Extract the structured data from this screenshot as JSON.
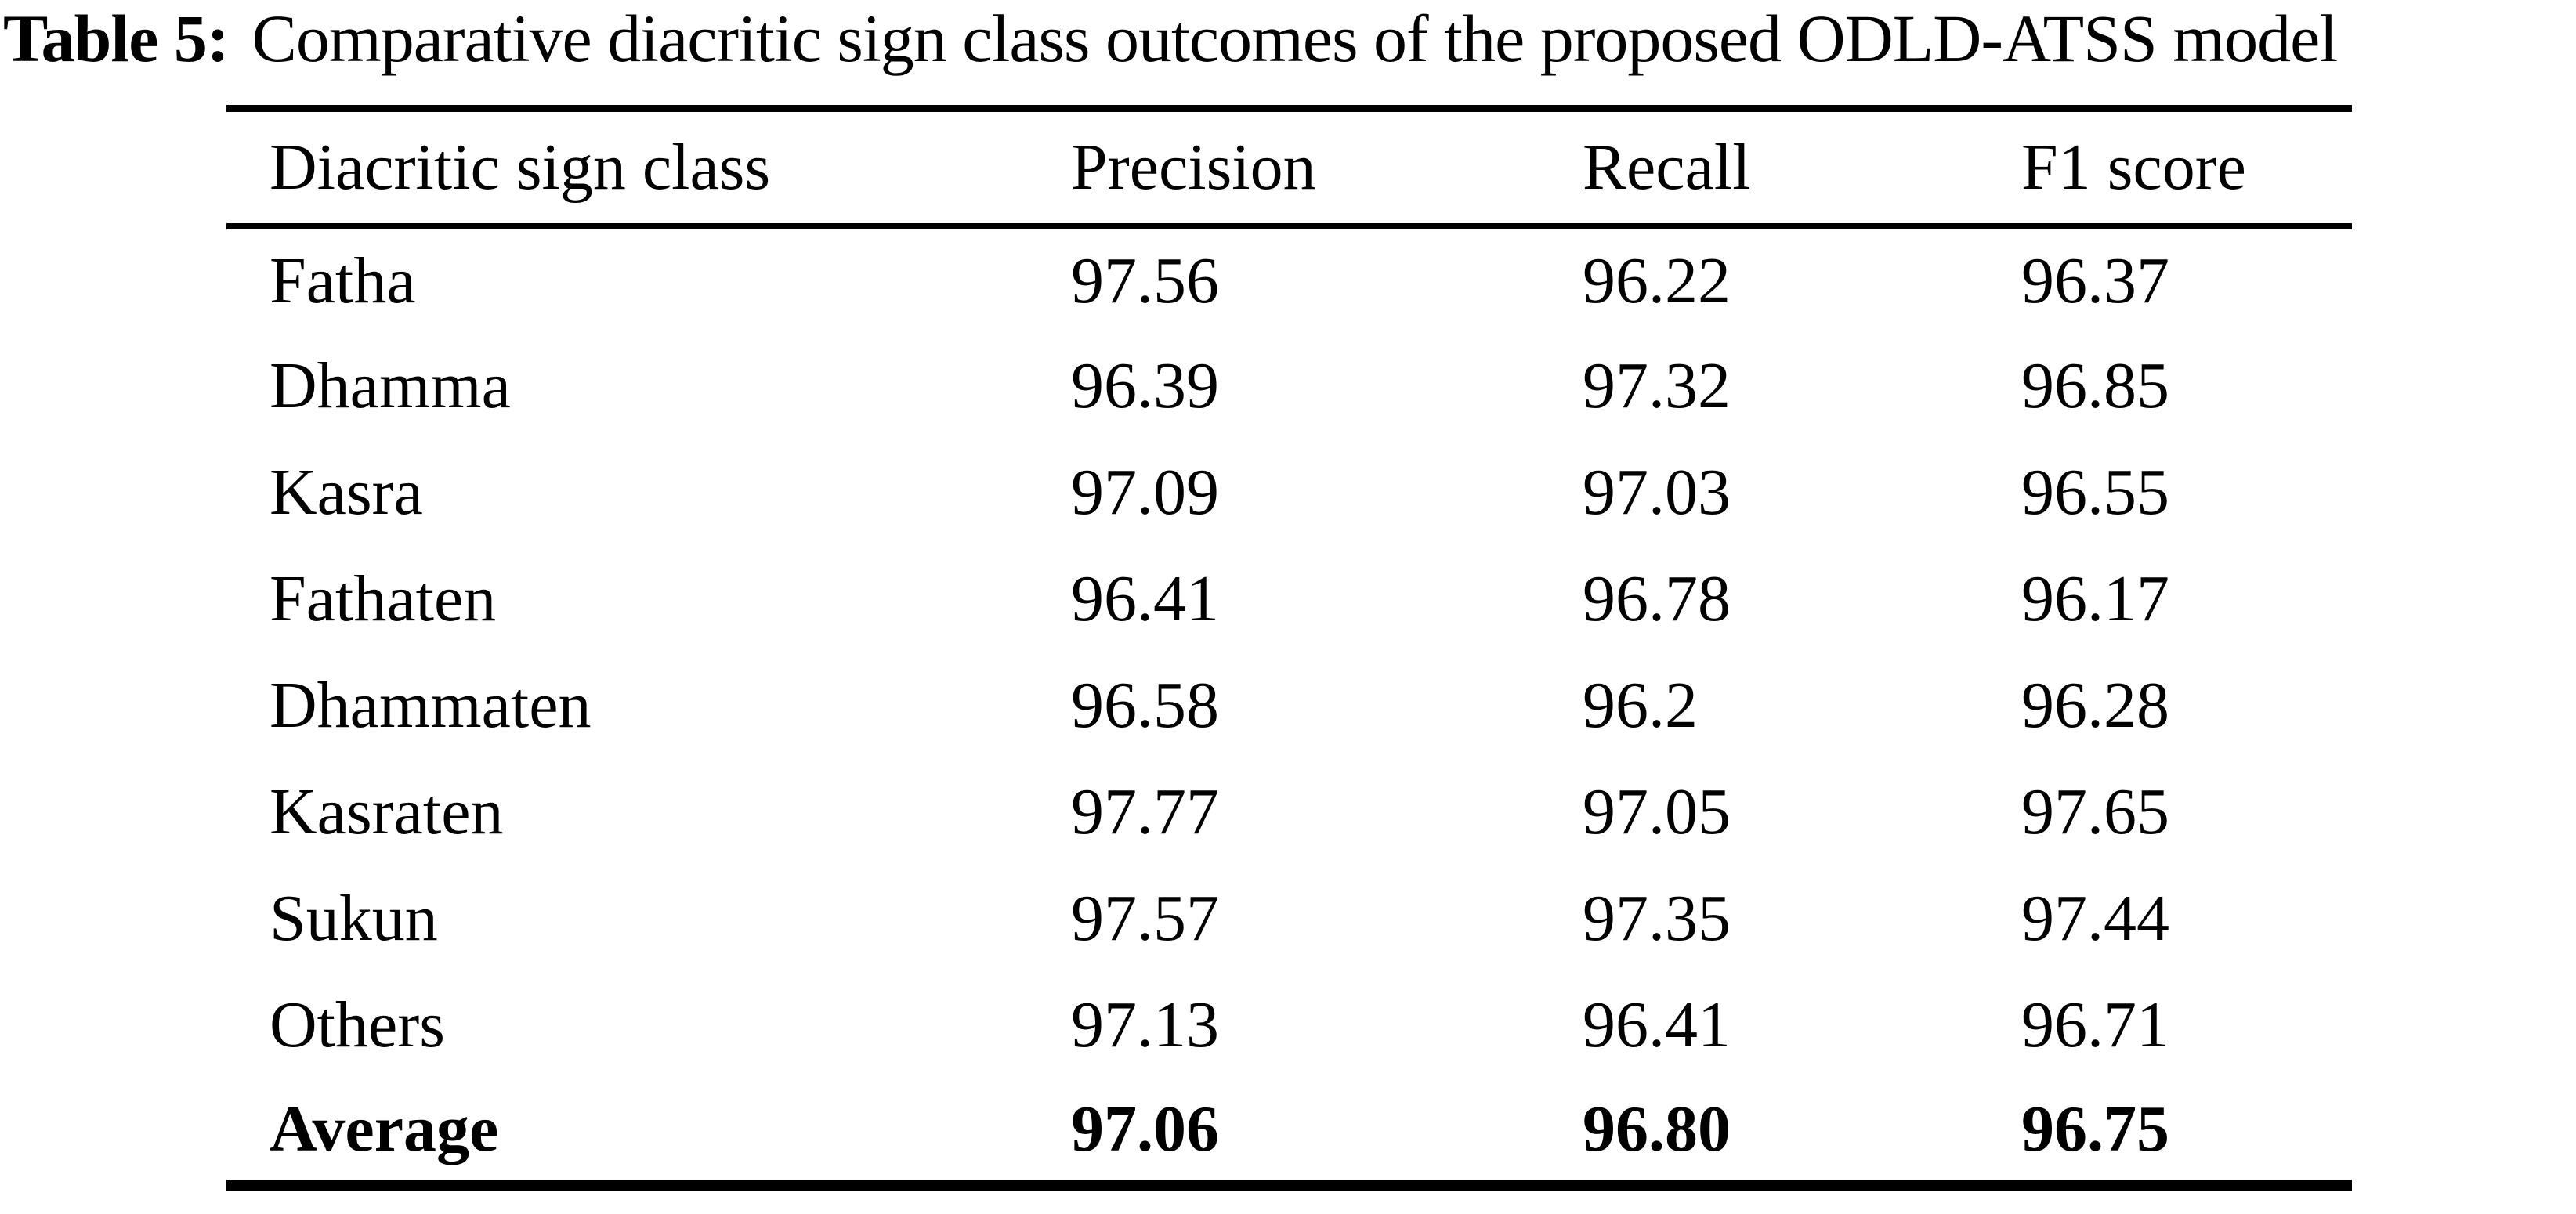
{
  "caption": {
    "label": "Table 5:",
    "text": "Comparative diacritic sign class outcomes of the proposed ODLD-ATSS model"
  },
  "table": {
    "columns": [
      "Diacritic sign class",
      "Precision",
      "Recall",
      "F1 score"
    ],
    "rows": [
      {
        "class": "Fatha",
        "precision": "97.56",
        "recall": "96.22",
        "f1": "96.37",
        "bold": false
      },
      {
        "class": "Dhamma",
        "precision": "96.39",
        "recall": "97.32",
        "f1": "96.85",
        "bold": false
      },
      {
        "class": "Kasra",
        "precision": "97.09",
        "recall": "97.03",
        "f1": "96.55",
        "bold": false
      },
      {
        "class": "Fathaten",
        "precision": "96.41",
        "recall": "96.78",
        "f1": "96.17",
        "bold": false
      },
      {
        "class": "Dhammaten",
        "precision": "96.58",
        "recall": "96.2",
        "f1": "96.28",
        "bold": false
      },
      {
        "class": "Kasraten",
        "precision": "97.77",
        "recall": "97.05",
        "f1": "97.65",
        "bold": false
      },
      {
        "class": "Sukun",
        "precision": "97.57",
        "recall": "97.35",
        "f1": "97.44",
        "bold": false
      },
      {
        "class": "Others",
        "precision": "97.13",
        "recall": "96.41",
        "f1": "96.71",
        "bold": false
      },
      {
        "class": "Average",
        "precision": "97.06",
        "recall": "96.80",
        "f1": "96.75",
        "bold": true
      }
    ]
  },
  "colors": {
    "text": "#000000",
    "background": "#ffffff",
    "rule": "#000000"
  }
}
